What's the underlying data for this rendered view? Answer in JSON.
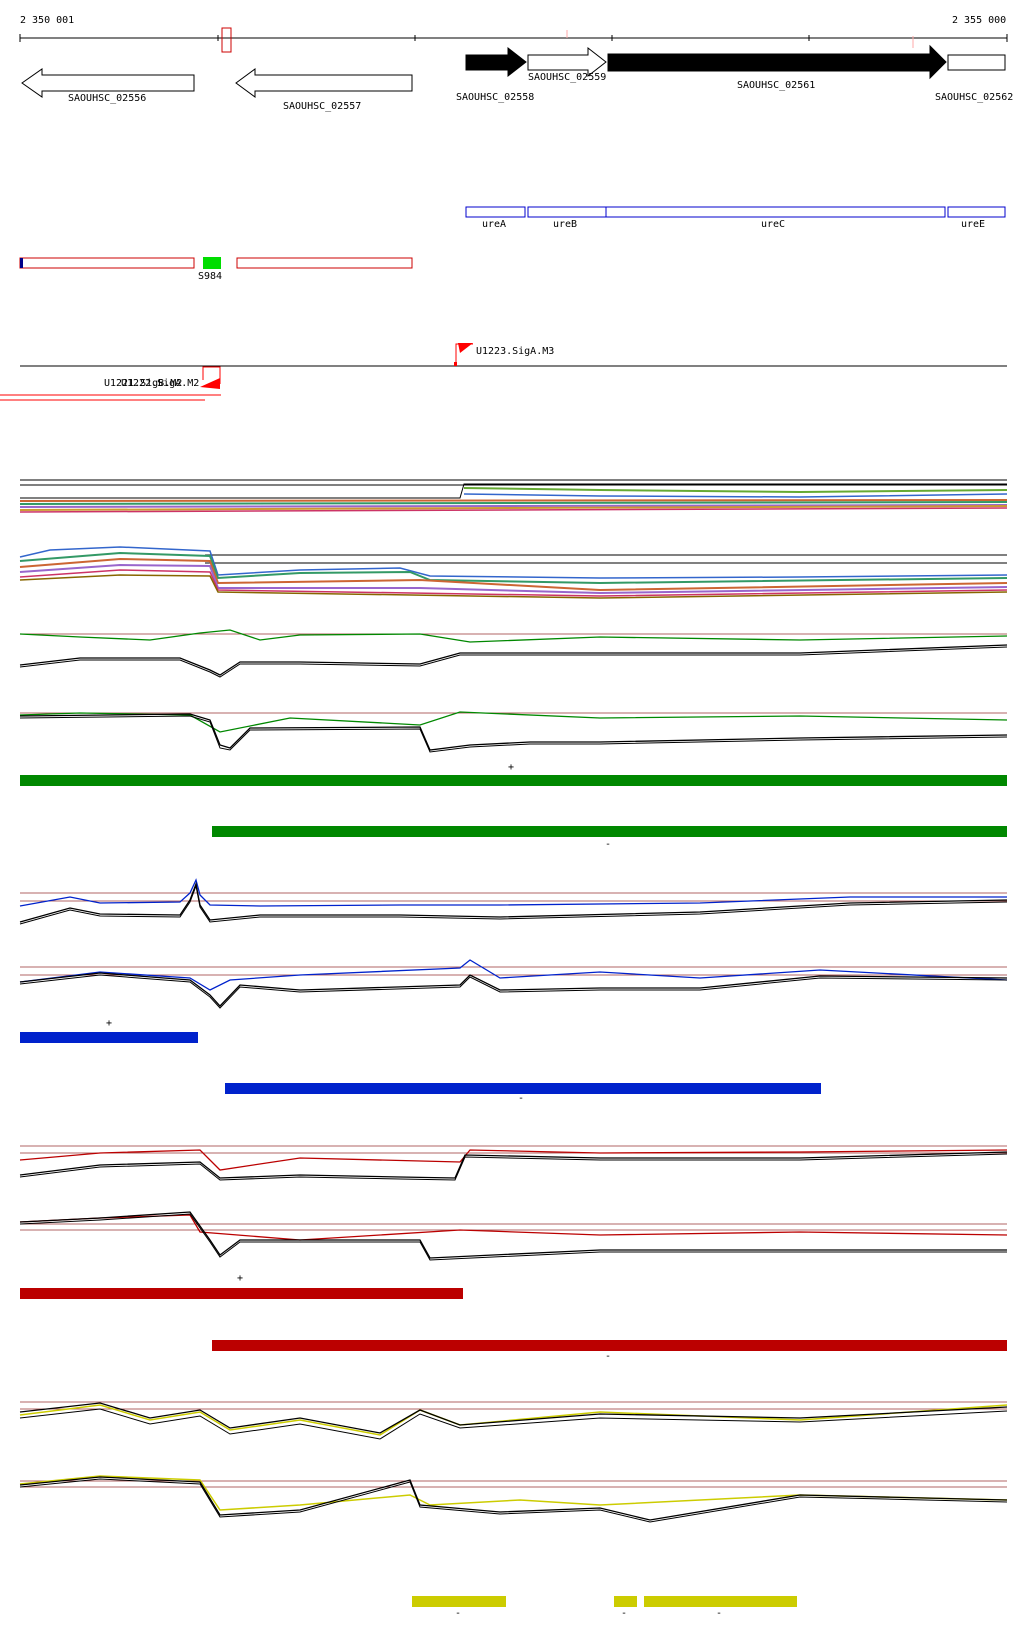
{
  "ruler": {
    "start_label": "2 350 001",
    "end_label": "2 355 000"
  },
  "genes": [
    {
      "name": "SAOUHSC_02556",
      "strand": "-"
    },
    {
      "name": "SAOUHSC_02557",
      "strand": "-"
    },
    {
      "name": "SAOUHSC_02558",
      "strand": "+"
    },
    {
      "name": "SAOUHSC_02559",
      "strand": "+"
    },
    {
      "name": "SAOUHSC_02561",
      "strand": "+"
    },
    {
      "name": "SAOUHSC_02562",
      "strand": "+"
    }
  ],
  "operon_genes": [
    "ureA",
    "ureB",
    "ureC",
    "ureE"
  ],
  "srna_label": "S984",
  "promoters": {
    "forward": "U1223.SigA.M3",
    "reverse_a": "U1221.SigB.M2",
    "reverse_b": "U1222.SigA.M2"
  },
  "colors": {
    "gene_forward": "#000000",
    "operon": "#0000cc",
    "segment_outline": "#cc0000",
    "srna": "#00dd00",
    "promoter": "#ff0000",
    "green_track": "#008800",
    "blue_track": "#0022cc",
    "red_track": "#bb0000",
    "yellow_track": "#cccc00"
  },
  "strand_marks": {
    "plus": "+",
    "minus": "-"
  }
}
